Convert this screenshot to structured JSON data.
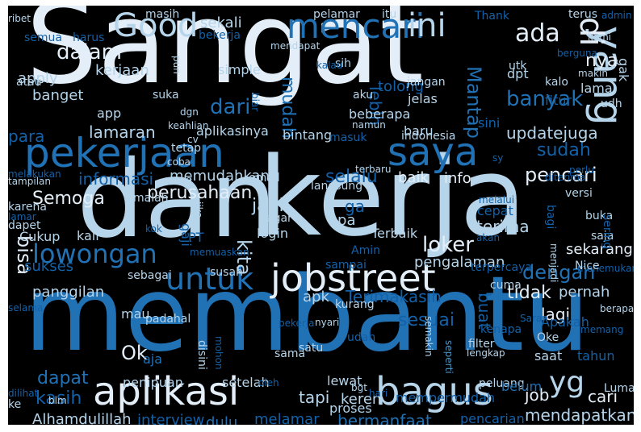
{
  "palette": {
    "background": "#000000",
    "lightest": "#e3eef9",
    "light": "#b6d4ea",
    "mid_light": "#8cbfde",
    "mid": "#4a98c9",
    "mid_dark": "#2171b5",
    "dark": "#1361a8",
    "darker": "#08509b",
    "darkest": "#0b3b7a"
  },
  "word_cloud": {
    "words": [
      "Sangat",
      "dan",
      "kerja",
      "membantu",
      "pekerjaan",
      "saya",
      "yang",
      "aplikasi",
      "bagus",
      "jobstreet",
      "untuk",
      "Good",
      "mencari",
      "ini",
      "yg",
      "di",
      "lowongan",
      "ada",
      "nya",
      "dalam",
      "kerjaan",
      "banyak",
      "dari",
      "mudah",
      "Mantap",
      "lebih",
      "pencari",
      "Semoga",
      "perusahaan",
      "loker",
      "dengan",
      "bisa",
      "kita",
      "tidak",
      "Ok",
      "dapat",
      "kasih",
      "sudah",
      "updatejuga",
      "lamaran",
      "para",
      "informasi",
      "selalu",
      "baik",
      "info",
      "sekali",
      "tolong",
      "apply",
      "banget",
      "sesuai",
      "buat",
      "Terimakasih",
      "lagi",
      "cari",
      "job",
      "mendapatkan",
      "bermanfaat",
      "melamar",
      "tapi",
      "sekarang",
      "apk",
      "pernah",
      "pengalaman",
      "terima",
      "panggilan",
      "Cukup",
      "sukses",
      "kali",
      "jadi",
      "ga",
      "apa",
      "gaji",
      "cepat",
      "login",
      "Terbaik",
      "memudahkan",
      "aplikasinya",
      "bintang",
      "beberapa",
      "jelas",
      "sini",
      "baru",
      "Alhamdulillah",
      "interview",
      "dulu",
      "keren",
      "proses",
      "pencarian",
      "mempermudah",
      "lewat",
      "bgt",
      "penipuan",
      "setelah",
      "oleh",
      "peluang",
      "Lumayan",
      "tahun",
      "saat",
      "Oke",
      "filter",
      "lengkap",
      "seperti",
      "Apakah",
      "kenapa",
      "sama",
      "disini",
      "mohon",
      "satu",
      "udah",
      "nyari",
      "kurang",
      "mau",
      "padahal",
      "masih",
      "pelamar",
      "itu",
      "terus",
      "admin",
      "Thank",
      "bekerja",
      "mendapat",
      "semua",
      "harus",
      "ribet",
      "kami",
      "pun",
      "simple",
      "sih",
      "utk",
      "dpt",
      "kalo",
      "makin",
      "lama",
      "gak",
      "udh",
      "app",
      "suka",
      "dgn",
      "aku",
      "jangan",
      "fitur",
      "berguna",
      "atau",
      "kalau",
      "biar",
      "namun",
      "masuk",
      "indonesia",
      "keahlian",
      "cv",
      "tetap",
      "coba",
      "orang",
      "email",
      "langsung",
      "diterima",
      "melakukan",
      "tampilan",
      "karena",
      "lamar",
      "dapet",
      "malah",
      "agar",
      "jika",
      "versi",
      "buka",
      "melalui",
      "akan",
      "bagi",
      "saja",
      "kok",
      "PT",
      "Amin",
      "sampai",
      "menjadi",
      "menemukan",
      "sering",
      "memuaskan",
      "sebagai",
      "susah",
      "terpercaya",
      "cuma",
      "Nice",
      "Saran",
      "berapa",
      "semakin",
      "hari",
      "dilihat",
      "blm",
      "ke",
      "aja",
      "belum",
      "selama",
      "memang",
      "sy",
      "pekerja",
      "perlu",
      "terbaru",
      "hal"
    ]
  }
}
